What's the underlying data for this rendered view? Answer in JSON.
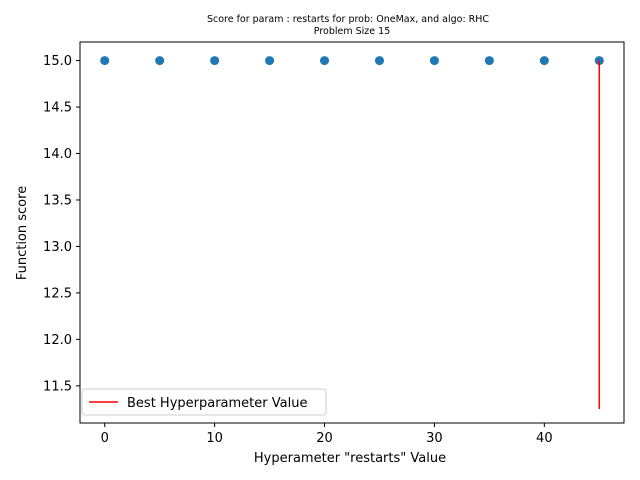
{
  "chart_data": {
    "type": "scatter",
    "title": "Score for param : restarts for prob: OneMax, and algo: RHC",
    "subtitle": "Problem Size 15",
    "xlabel": "Hyperameter \"restarts\" Value",
    "ylabel": "Function score",
    "xlim": [
      -2.25,
      47.25
    ],
    "ylim": [
      11.1,
      15.2
    ],
    "xticks": [
      0,
      10,
      20,
      30,
      40
    ],
    "xtick_labels": [
      "0",
      "10",
      "20",
      "30",
      "40"
    ],
    "yticks": [
      11.5,
      12.0,
      12.5,
      13.0,
      13.5,
      14.0,
      14.5,
      15.0
    ],
    "ytick_labels": [
      "11.5",
      "12.0",
      "12.5",
      "13.0",
      "13.5",
      "14.0",
      "14.5",
      "15.0"
    ],
    "grid": false,
    "legend_position": "lower-left",
    "series": [
      {
        "kind": "scatter",
        "color": "#1f77b4",
        "x": [
          0,
          5,
          10,
          15,
          20,
          25,
          30,
          35,
          40,
          45
        ],
        "y": [
          15.0,
          15.0,
          15.0,
          15.0,
          15.0,
          15.0,
          15.0,
          15.0,
          15.0,
          15.0
        ]
      },
      {
        "kind": "vline",
        "name": "Best Hyperparameter Value",
        "color": "#ff0000",
        "x": 45,
        "ymin": 11.25,
        "ymax": 15.0
      }
    ]
  }
}
